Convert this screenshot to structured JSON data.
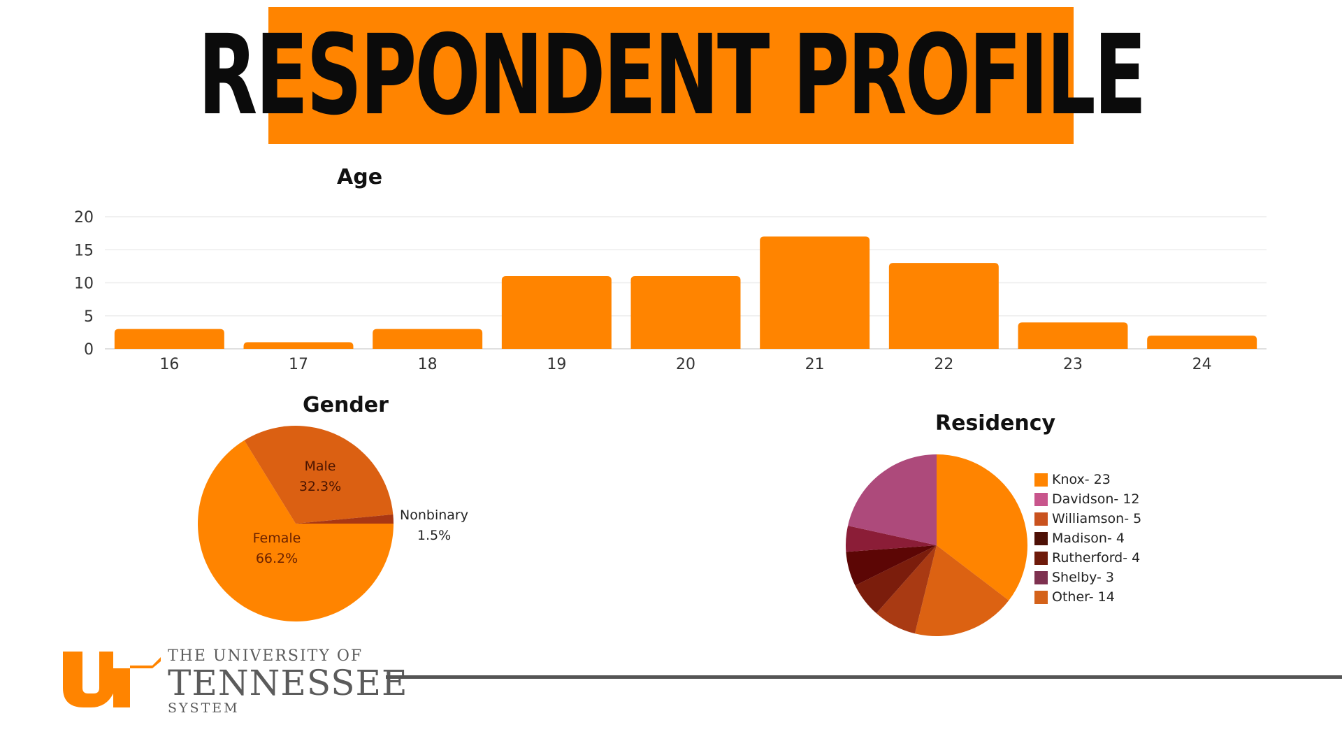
{
  "banner": {
    "title": "RESPONDENT PROFILE"
  },
  "logo": {
    "line1": "THE UNIVERSITY OF",
    "line2": "TENNESSEE",
    "line3": "SYSTEM"
  },
  "colors": {
    "accent": "#ff8400",
    "male": "#db6012",
    "nonbinary": "#a93713"
  },
  "chart_data": [
    {
      "type": "bar",
      "title": "Age",
      "categories": [
        "16",
        "17",
        "18",
        "19",
        "20",
        "21",
        "22",
        "23",
        "24"
      ],
      "values": [
        3,
        1,
        3,
        11,
        11,
        17,
        13,
        4,
        2
      ],
      "ylim": [
        0,
        20
      ],
      "yticks": [
        0,
        5,
        10,
        15,
        20
      ],
      "xlabel": "",
      "ylabel": "",
      "grid": true,
      "color": "#ff8400"
    },
    {
      "type": "pie",
      "title": "Gender",
      "labels": [
        "Female",
        "Male",
        "Nonbinary"
      ],
      "values": [
        66.2,
        32.3,
        1.5
      ],
      "display": [
        "66.2%",
        "32.3%",
        "1.5%"
      ],
      "colors": [
        "#ff8400",
        "#db6012",
        "#a93713"
      ]
    },
    {
      "type": "pie",
      "title": "Residency",
      "labels": [
        "Knox- 23",
        "Davidson- 12",
        "Williamson- 5",
        "Madison- 4",
        "Rutherford- 4",
        "Shelby- 3",
        "Other- 14"
      ],
      "values": [
        23,
        12,
        5,
        4,
        4,
        3,
        14
      ],
      "legend_colors": [
        "#ff8400",
        "#c8558c",
        "#c9521e",
        "#4d1006",
        "#6e1a0a",
        "#7e3150",
        "#d4621a"
      ],
      "slices": [
        {
          "value": 23,
          "color": "#ff8400"
        },
        {
          "value": 12,
          "color": "#dc6212"
        },
        {
          "value": 5,
          "color": "#a93a13"
        },
        {
          "value": 4,
          "color": "#7b1d0c"
        },
        {
          "value": 4,
          "color": "#5c0605"
        },
        {
          "value": 3,
          "color": "#8b1d37"
        },
        {
          "value": 14,
          "color": "#ad4a7b"
        }
      ],
      "legend_position": "right"
    }
  ]
}
